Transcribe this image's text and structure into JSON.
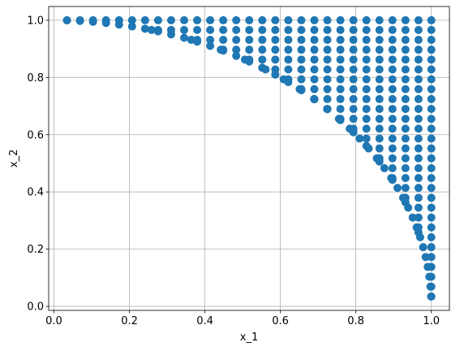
{
  "chart_data": {
    "type": "scatter",
    "xlabel": "x_1",
    "ylabel": "x_2",
    "xlim": [
      -0.014,
      1.048
    ],
    "ylim": [
      -0.014,
      1.048
    ],
    "grid": true,
    "point_color": "#1f77b4",
    "x_ticks": [
      "0.0",
      "0.2",
      "0.4",
      "0.6",
      "0.8",
      "1.0"
    ],
    "y_ticks": [
      "0.0",
      "0.2",
      "0.4",
      "0.6",
      "0.8",
      "1.0"
    ],
    "series": [
      {
        "points_description": "grid points on a 29x29 lattice (step ~0.0345) lying on/outside the unit quarter-circle in the first quadrant",
        "grid_step": 0.0345,
        "grid_count": 29
      }
    ]
  }
}
